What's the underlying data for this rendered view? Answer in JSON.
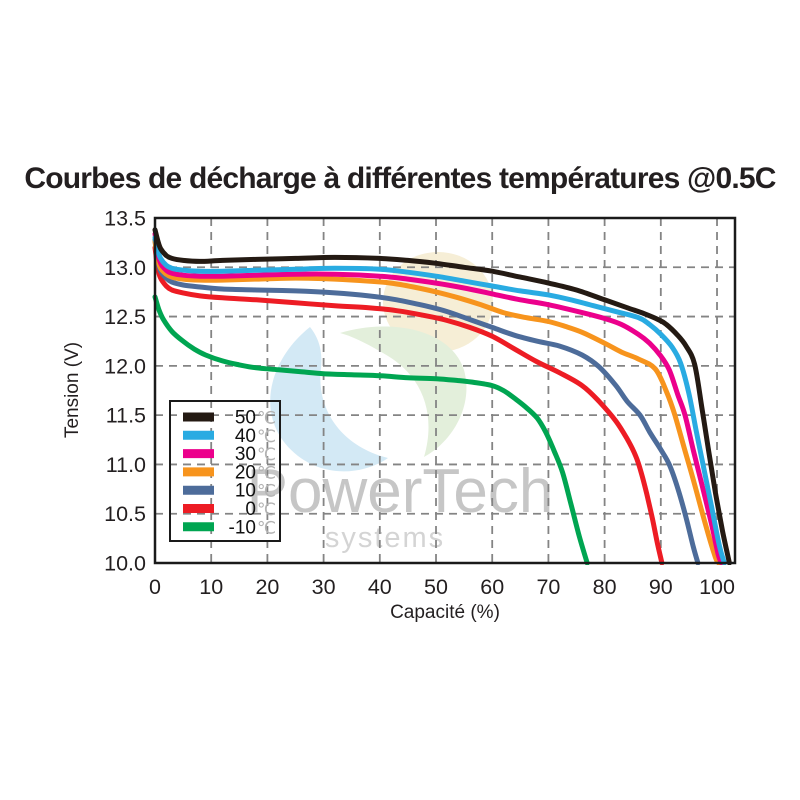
{
  "title": "Courbes de décharge à différentes températures @0.5C",
  "watermark": {
    "line1": "PowerTech",
    "line2": "systems",
    "text_color1": "#c6c6c6",
    "text_color2": "#d4d4d4",
    "logo_colors": {
      "yellow": "#f6eed6",
      "blue": "#d3e9f5",
      "green": "#e3efdb"
    }
  },
  "chart_data": {
    "type": "line",
    "title": "Courbes de décharge à différentes températures @0.5C",
    "xlabel": "Capacité (%)",
    "ylabel": "Tension (V)",
    "xlim": [
      0,
      103.2
    ],
    "ylim": [
      10.0,
      13.5
    ],
    "grid": true,
    "grid_color": "#848484",
    "frame_color": "#1a1a1a",
    "legend_position": "inside-left",
    "x_ticks": [
      {
        "label": "0",
        "value": 0
      },
      {
        "label": "10",
        "value": 10
      },
      {
        "label": "20",
        "value": 20
      },
      {
        "label": "30",
        "value": 30
      },
      {
        "label": "40",
        "value": 40
      },
      {
        "label": "50",
        "value": 50
      },
      {
        "label": "60",
        "value": 60
      },
      {
        "label": "70",
        "value": 70
      },
      {
        "label": "80",
        "value": 80
      },
      {
        "label": "90",
        "value": 90
      },
      {
        "label": "100",
        "value": 100
      }
    ],
    "y_ticks": [
      {
        "label": "13.5",
        "value": 13.5
      },
      {
        "label": "13.0",
        "value": 13.0
      },
      {
        "label": "12.5",
        "value": 12.5
      },
      {
        "label": "12.0",
        "value": 12.0
      },
      {
        "label": "11.5",
        "value": 11.5
      },
      {
        "label": "11.0",
        "value": 11.0
      },
      {
        "label": "10.5",
        "value": 10.5
      },
      {
        "label": "10.0",
        "value": 10.0
      }
    ],
    "series": [
      {
        "id": "50c",
        "name": "50℃",
        "label_value": "50",
        "label_unit": "℃",
        "color": "#241a13",
        "points": [
          [
            0,
            13.38
          ],
          [
            0.5,
            13.27
          ],
          [
            1,
            13.19
          ],
          [
            2,
            13.12
          ],
          [
            3,
            13.09
          ],
          [
            5,
            13.07
          ],
          [
            8,
            13.06
          ],
          [
            12,
            13.07
          ],
          [
            18,
            13.08
          ],
          [
            25,
            13.09
          ],
          [
            32,
            13.1
          ],
          [
            40,
            13.09
          ],
          [
            45,
            13.07
          ],
          [
            50,
            13.04
          ],
          [
            55,
            13.0
          ],
          [
            60,
            12.96
          ],
          [
            65,
            12.9
          ],
          [
            70,
            12.84
          ],
          [
            75,
            12.77
          ],
          [
            80,
            12.67
          ],
          [
            84,
            12.59
          ],
          [
            87,
            12.53
          ],
          [
            89.5,
            12.47
          ],
          [
            91,
            12.42
          ],
          [
            93,
            12.31
          ],
          [
            94.5,
            12.2
          ],
          [
            96,
            12.02
          ],
          [
            97.3,
            11.58
          ],
          [
            98.5,
            11.14
          ],
          [
            99.7,
            10.72
          ],
          [
            101,
            10.32
          ],
          [
            102.2,
            10.0
          ]
        ]
      },
      {
        "id": "40c",
        "name": "40℃",
        "label_value": "40",
        "label_unit": "℃",
        "color": "#29abe2",
        "points": [
          [
            0,
            13.3
          ],
          [
            0.5,
            13.17
          ],
          [
            1,
            13.09
          ],
          [
            2,
            13.02
          ],
          [
            3,
            12.99
          ],
          [
            5,
            12.97
          ],
          [
            8,
            12.96
          ],
          [
            12,
            12.96
          ],
          [
            18,
            12.97
          ],
          [
            25,
            12.98
          ],
          [
            32,
            12.99
          ],
          [
            40,
            12.98
          ],
          [
            45,
            12.95
          ],
          [
            50,
            12.91
          ],
          [
            55,
            12.86
          ],
          [
            60,
            12.81
          ],
          [
            65,
            12.76
          ],
          [
            70,
            12.72
          ],
          [
            74,
            12.67
          ],
          [
            78,
            12.61
          ],
          [
            82,
            12.55
          ],
          [
            86,
            12.49
          ],
          [
            88,
            12.42
          ],
          [
            90,
            12.32
          ],
          [
            92,
            12.19
          ],
          [
            93.5,
            12.03
          ],
          [
            95,
            11.72
          ],
          [
            96.3,
            11.34
          ],
          [
            97.5,
            11.0
          ],
          [
            99,
            10.58
          ],
          [
            100.4,
            10.18
          ],
          [
            101.3,
            10.0
          ]
        ]
      },
      {
        "id": "30c",
        "name": "30℃",
        "label_value": "30",
        "label_unit": "℃",
        "color": "#ec008c",
        "points": [
          [
            0,
            13.34
          ],
          [
            0.5,
            13.15
          ],
          [
            1,
            13.04
          ],
          [
            2,
            12.97
          ],
          [
            3,
            12.94
          ],
          [
            5,
            12.92
          ],
          [
            8,
            12.91
          ],
          [
            12,
            12.91
          ],
          [
            18,
            12.92
          ],
          [
            25,
            12.93
          ],
          [
            32,
            12.93
          ],
          [
            40,
            12.91
          ],
          [
            45,
            12.88
          ],
          [
            50,
            12.84
          ],
          [
            55,
            12.79
          ],
          [
            60,
            12.73
          ],
          [
            65,
            12.67
          ],
          [
            70,
            12.62
          ],
          [
            76,
            12.54
          ],
          [
            80,
            12.48
          ],
          [
            83,
            12.42
          ],
          [
            86,
            12.32
          ],
          [
            88,
            12.23
          ],
          [
            90,
            12.1
          ],
          [
            91.5,
            11.96
          ],
          [
            93,
            11.71
          ],
          [
            94.3,
            11.5
          ],
          [
            95.8,
            11.14
          ],
          [
            97.3,
            10.8
          ],
          [
            99,
            10.4
          ],
          [
            100.2,
            10.09
          ],
          [
            100.8,
            10.0
          ]
        ]
      },
      {
        "id": "20c",
        "name": "20℃",
        "label_value": "20",
        "label_unit": "℃",
        "color": "#f7941d",
        "points": [
          [
            0,
            13.26
          ],
          [
            0.5,
            13.08
          ],
          [
            1,
            12.99
          ],
          [
            2,
            12.93
          ],
          [
            3,
            12.9
          ],
          [
            5,
            12.88
          ],
          [
            8,
            12.87
          ],
          [
            12,
            12.87
          ],
          [
            18,
            12.88
          ],
          [
            25,
            12.89
          ],
          [
            32,
            12.88
          ],
          [
            38,
            12.86
          ],
          [
            42,
            12.84
          ],
          [
            46,
            12.8
          ],
          [
            50,
            12.75
          ],
          [
            54,
            12.69
          ],
          [
            58,
            12.62
          ],
          [
            62,
            12.54
          ],
          [
            66,
            12.49
          ],
          [
            70,
            12.45
          ],
          [
            73,
            12.4
          ],
          [
            76,
            12.34
          ],
          [
            80,
            12.23
          ],
          [
            83,
            12.14
          ],
          [
            86,
            12.07
          ],
          [
            89,
            11.97
          ],
          [
            91,
            11.74
          ],
          [
            92.5,
            11.5
          ],
          [
            94.5,
            11.1
          ],
          [
            96,
            10.8
          ],
          [
            98,
            10.38
          ],
          [
            99.7,
            10.06
          ],
          [
            100.3,
            10.0
          ]
        ]
      },
      {
        "id": "10c",
        "name": "10℃",
        "label_value": "10",
        "label_unit": "℃",
        "color": "#4d6c9a",
        "points": [
          [
            0,
            13.28
          ],
          [
            0.5,
            13.06
          ],
          [
            1,
            12.96
          ],
          [
            2,
            12.89
          ],
          [
            3,
            12.85
          ],
          [
            5,
            12.82
          ],
          [
            8,
            12.8
          ],
          [
            12,
            12.78
          ],
          [
            18,
            12.77
          ],
          [
            25,
            12.76
          ],
          [
            32,
            12.74
          ],
          [
            38,
            12.71
          ],
          [
            43,
            12.67
          ],
          [
            48,
            12.61
          ],
          [
            52,
            12.55
          ],
          [
            56,
            12.47
          ],
          [
            60,
            12.39
          ],
          [
            64,
            12.31
          ],
          [
            68,
            12.25
          ],
          [
            72,
            12.2
          ],
          [
            76,
            12.11
          ],
          [
            79,
            11.99
          ],
          [
            82,
            11.8
          ],
          [
            84,
            11.64
          ],
          [
            86.3,
            11.5
          ],
          [
            88,
            11.33
          ],
          [
            90,
            11.15
          ],
          [
            91.5,
            11.0
          ],
          [
            93,
            10.76
          ],
          [
            94.5,
            10.46
          ],
          [
            95.8,
            10.16
          ],
          [
            96.6,
            10.0
          ]
        ]
      },
      {
        "id": "0c",
        "name": "0℃",
        "label_value": "0",
        "label_unit": "℃",
        "color": "#ed1c24",
        "points": [
          [
            0,
            13.2
          ],
          [
            0.5,
            12.99
          ],
          [
            1,
            12.89
          ],
          [
            2,
            12.81
          ],
          [
            3,
            12.77
          ],
          [
            5,
            12.74
          ],
          [
            8,
            12.71
          ],
          [
            12,
            12.69
          ],
          [
            18,
            12.67
          ],
          [
            25,
            12.64
          ],
          [
            32,
            12.61
          ],
          [
            38,
            12.59
          ],
          [
            43,
            12.56
          ],
          [
            48,
            12.51
          ],
          [
            52,
            12.46
          ],
          [
            56,
            12.39
          ],
          [
            60,
            12.3
          ],
          [
            64,
            12.17
          ],
          [
            68,
            12.04
          ],
          [
            72,
            11.93
          ],
          [
            76,
            11.8
          ],
          [
            79,
            11.64
          ],
          [
            82,
            11.44
          ],
          [
            84,
            11.26
          ],
          [
            85.5,
            11.09
          ],
          [
            86.5,
            10.92
          ],
          [
            87.5,
            10.7
          ],
          [
            88.5,
            10.45
          ],
          [
            89.4,
            10.2
          ],
          [
            90.2,
            10.0
          ]
        ]
      },
      {
        "id": "minus10c",
        "name": "-10℃",
        "label_value": "-10",
        "label_unit": "℃",
        "color": "#00a551",
        "points": [
          [
            0,
            12.7
          ],
          [
            0.7,
            12.57
          ],
          [
            1.5,
            12.47
          ],
          [
            3,
            12.35
          ],
          [
            5,
            12.25
          ],
          [
            7,
            12.17
          ],
          [
            9,
            12.11
          ],
          [
            12,
            12.05
          ],
          [
            15,
            12.01
          ],
          [
            18,
            11.98
          ],
          [
            22,
            11.96
          ],
          [
            26,
            11.94
          ],
          [
            30,
            11.92
          ],
          [
            35,
            11.91
          ],
          [
            40,
            11.9
          ],
          [
            45,
            11.88
          ],
          [
            50,
            11.87
          ],
          [
            54,
            11.85
          ],
          [
            57,
            11.83
          ],
          [
            60,
            11.8
          ],
          [
            62,
            11.75
          ],
          [
            64,
            11.67
          ],
          [
            66,
            11.58
          ],
          [
            68,
            11.47
          ],
          [
            69.5,
            11.33
          ],
          [
            71,
            11.14
          ],
          [
            72.5,
            10.92
          ],
          [
            74,
            10.6
          ],
          [
            75.5,
            10.27
          ],
          [
            76.9,
            10.0
          ]
        ]
      }
    ]
  }
}
